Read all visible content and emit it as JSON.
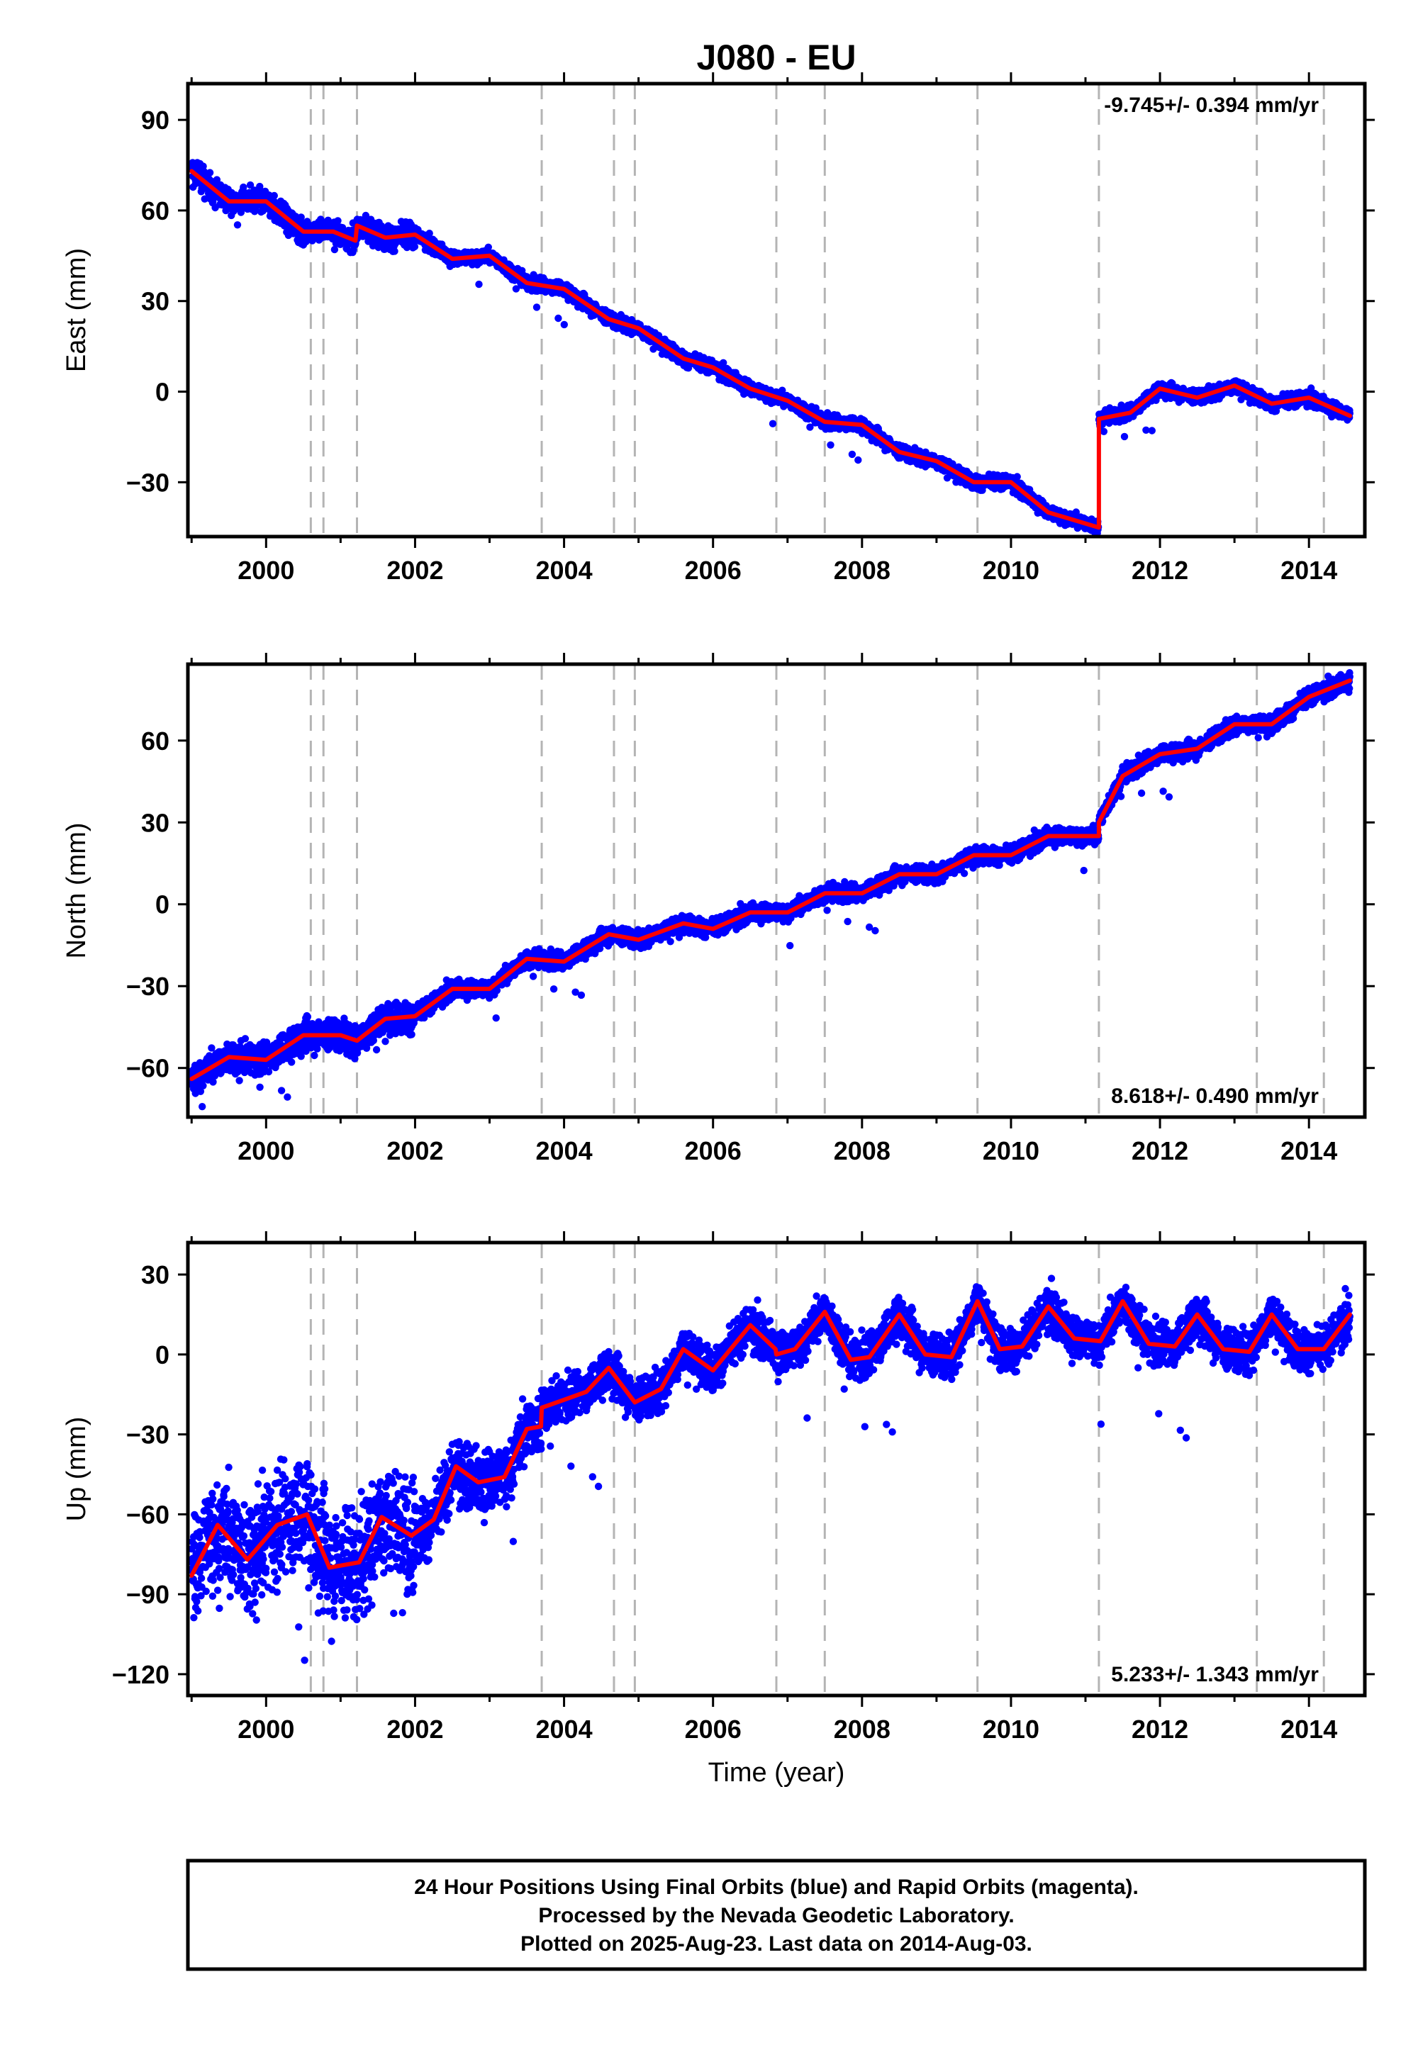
{
  "title": "J080 - EU",
  "xlabel": "Time (year)",
  "x_ticks": [
    2000,
    2002,
    2004,
    2006,
    2008,
    2010,
    2012,
    2014
  ],
  "xlim": [
    1998.95,
    2014.75
  ],
  "event_lines": [
    2000.6,
    2000.77,
    2001.22,
    2003.7,
    2004.67,
    2004.95,
    2006.85,
    2007.5,
    2009.55,
    2011.18,
    2013.3,
    2014.2
  ],
  "colors": {
    "final_orbits": "#0000ff",
    "model": "#ff0000",
    "event_line": "#b4b4b4"
  },
  "footer": [
    "24 Hour Positions Using Final Orbits (blue) and Rapid Orbits (magenta).",
    "Processed by the Nevada Geodetic Laboratory.",
    "Plotted on 2025-Aug-23. Last data on 2014-Aug-03."
  ],
  "chart_data": [
    {
      "type": "scatter",
      "name": "east",
      "ylabel": "East (mm)",
      "ylim": [
        -48,
        102
      ],
      "y_ticks": [
        -30,
        0,
        30,
        60,
        90
      ],
      "rate_text": "-9.745+/- 0.394 mm/yr",
      "rate_position": "top-right",
      "model": {
        "x": [
          1999.0,
          1999.5,
          2000.0,
          2000.5,
          2000.9,
          2001.2,
          2001.22,
          2001.6,
          2002.0,
          2002.5,
          2003.0,
          2003.5,
          2004.0,
          2004.6,
          2005.0,
          2005.6,
          2006.0,
          2006.5,
          2007.0,
          2007.5,
          2008.0,
          2008.5,
          2009.0,
          2009.5,
          2010.0,
          2010.5,
          2011.18,
          2011.18,
          2011.6,
          2012.0,
          2012.5,
          2013.0,
          2013.5,
          2014.0,
          2014.55
        ],
        "y": [
          73,
          63,
          63,
          53,
          53,
          50,
          55,
          51,
          52,
          44,
          45,
          36,
          34,
          24,
          21,
          11,
          8,
          1,
          -3,
          -10,
          -11,
          -20,
          -23,
          -30,
          -30,
          -40,
          -45,
          -9,
          -7,
          1,
          -2,
          2,
          -4,
          -2,
          -8
        ]
      },
      "observations": {
        "x_start": 1999.0,
        "x_end": 2014.55,
        "noise_sd": 1.6,
        "annual_amp": 2
      }
    },
    {
      "type": "scatter",
      "name": "north",
      "ylabel": "North (mm)",
      "ylim": [
        -78,
        88
      ],
      "y_ticks": [
        -60,
        -30,
        0,
        30,
        60
      ],
      "rate_text": "8.618+/- 0.490 mm/yr",
      "rate_position": "bottom-right",
      "model": {
        "x": [
          1999.0,
          1999.5,
          2000.0,
          2000.5,
          2001.0,
          2001.22,
          2001.6,
          2002.0,
          2002.5,
          2003.0,
          2003.5,
          2004.0,
          2004.6,
          2005.0,
          2005.6,
          2006.0,
          2006.5,
          2007.0,
          2007.5,
          2008.0,
          2008.5,
          2009.0,
          2009.5,
          2010.0,
          2010.5,
          2011.18,
          2011.18,
          2011.5,
          2012.0,
          2012.5,
          2013.0,
          2013.5,
          2014.0,
          2014.55
        ],
        "y": [
          -64,
          -56,
          -57,
          -48,
          -48,
          -50,
          -42,
          -41,
          -31,
          -31,
          -20,
          -21,
          -11,
          -13,
          -7,
          -9,
          -3,
          -3,
          4,
          4,
          11,
          11,
          18,
          18,
          25,
          25,
          30,
          47,
          55,
          57,
          66,
          66,
          76,
          82
        ]
      },
      "observations": {
        "x_start": 1999.0,
        "x_end": 2014.55,
        "noise_sd": 2.2,
        "annual_amp": 2
      }
    },
    {
      "type": "scatter",
      "name": "up",
      "ylabel": "Up (mm)",
      "ylim": [
        -128,
        42
      ],
      "y_ticks": [
        -120,
        -90,
        -60,
        -30,
        0,
        30
      ],
      "rate_text": "5.233+/- 1.343 mm/yr",
      "rate_position": "bottom-right",
      "model": {
        "x": [
          1999.0,
          1999.35,
          1999.75,
          2000.15,
          2000.55,
          2000.85,
          2001.25,
          2001.55,
          2001.95,
          2002.25,
          2002.55,
          2002.85,
          2003.2,
          2003.5,
          2003.69,
          2003.7,
          2004.0,
          2004.3,
          2004.6,
          2004.95,
          2005.3,
          2005.6,
          2006.0,
          2006.5,
          2006.84,
          2006.85,
          2007.1,
          2007.5,
          2007.85,
          2008.1,
          2008.5,
          2008.85,
          2009.2,
          2009.55,
          2009.85,
          2010.15,
          2010.5,
          2010.85,
          2011.2,
          2011.5,
          2011.85,
          2012.2,
          2012.5,
          2012.85,
          2013.2,
          2013.5,
          2013.85,
          2014.2,
          2014.55
        ],
        "y": [
          -83,
          -64,
          -77,
          -64,
          -60,
          -80,
          -78,
          -61,
          -68,
          -62,
          -42,
          -48,
          -46,
          -28,
          -27,
          -20,
          -17,
          -14,
          -5,
          -18,
          -13,
          2,
          -6,
          11,
          2,
          0,
          2,
          16,
          -2,
          -1,
          15,
          0,
          -1,
          20,
          2,
          3,
          18,
          6,
          5,
          20,
          4,
          3,
          15,
          2,
          1,
          15,
          2,
          2,
          15
        ]
      },
      "observations": {
        "x_start": 1999.0,
        "x_end": 2014.55,
        "noise_sd": 5.5,
        "annual_amp": 4
      }
    }
  ]
}
